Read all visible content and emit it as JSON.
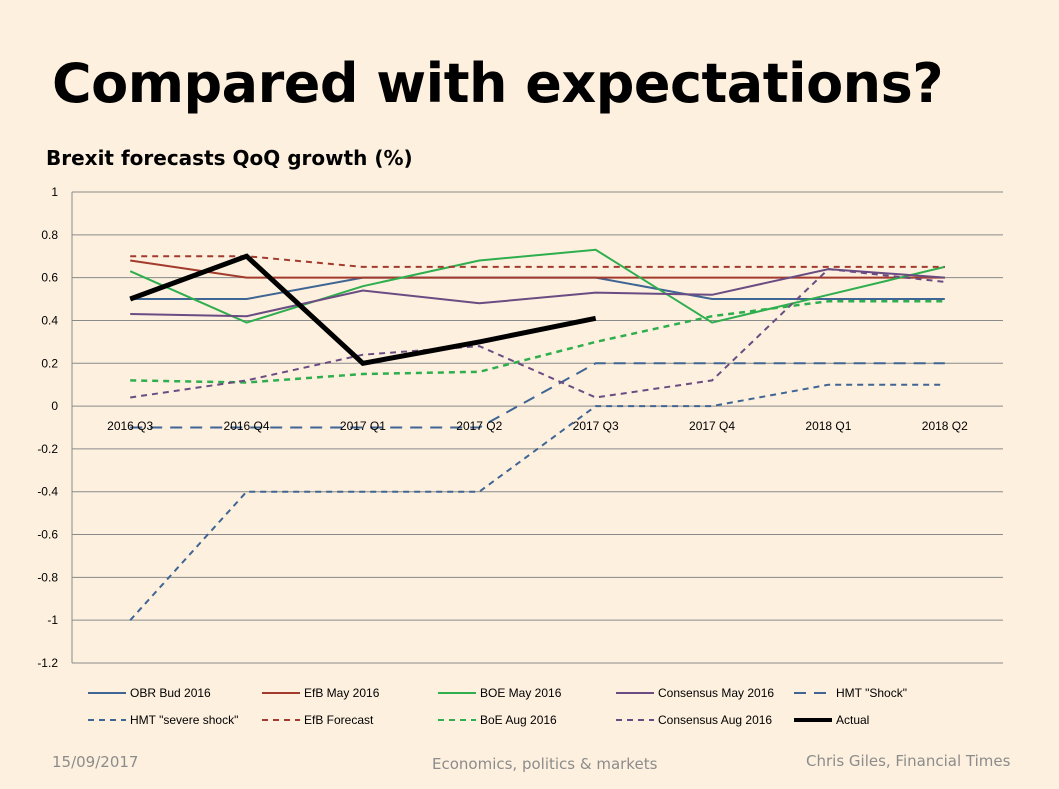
{
  "slide": {
    "title": "Compared with expectations?",
    "footer_date": "15/09/2017",
    "footer_center": "Economics, politics & markets",
    "footer_right": "Chris Giles, Financial Times"
  },
  "chart_data": {
    "type": "line",
    "title": "Brexit forecasts QoQ growth (%)",
    "xlabel": "",
    "ylabel": "",
    "categories": [
      "2016 Q3",
      "2016 Q4",
      "2017 Q1",
      "2017 Q2",
      "2017 Q3",
      "2017 Q4",
      "2018 Q1",
      "2018 Q2"
    ],
    "ylim": [
      -1.2,
      1
    ],
    "yticks": [
      1,
      0.8,
      0.6,
      0.4,
      0.2,
      0,
      -0.2,
      -0.4,
      -0.6,
      -0.8,
      -1,
      -1.2
    ],
    "ytick_labels": [
      "1",
      "0.8",
      "0.6",
      "0.4",
      "0.2",
      "0",
      "-0.2",
      "-0.4",
      "-0.6",
      "-0.8",
      "-1",
      "-1.2"
    ],
    "grid": true,
    "legend_position": "bottom",
    "series": [
      {
        "name": "OBR Bud 2016",
        "values": [
          0.5,
          0.5,
          0.6,
          0.6,
          0.6,
          0.5,
          0.5,
          0.5
        ],
        "color": "#3f6594",
        "dash": "solid",
        "width": 2
      },
      {
        "name": "EfB May 2016",
        "values": [
          0.68,
          0.6,
          0.6,
          0.6,
          0.6,
          0.6,
          0.6,
          0.6
        ],
        "color": "#a23b2e",
        "dash": "solid",
        "width": 2
      },
      {
        "name": "BOE May 2016",
        "values": [
          0.63,
          0.39,
          0.56,
          0.68,
          0.73,
          0.39,
          0.52,
          0.65
        ],
        "color": "#2fae4e",
        "dash": "solid",
        "width": 2
      },
      {
        "name": "Consensus May 2016",
        "values": [
          0.43,
          0.42,
          0.54,
          0.48,
          0.53,
          0.52,
          0.64,
          0.6
        ],
        "color": "#6a4c82",
        "dash": "solid",
        "width": 2
      },
      {
        "name": "HMT \"Shock\"",
        "values": [
          -0.1,
          -0.1,
          -0.1,
          -0.1,
          0.2,
          0.2,
          0.2,
          0.2
        ],
        "color": "#3f6594",
        "dash": "long",
        "width": 2
      },
      {
        "name": "HMT \"severe shock\"",
        "values": [
          -1,
          -0.4,
          -0.4,
          -0.4,
          0,
          0,
          0.1,
          0.1
        ],
        "color": "#3f6594",
        "dash": "short",
        "width": 2
      },
      {
        "name": "EfB Forecast",
        "values": [
          0.7,
          0.7,
          0.65,
          0.65,
          0.65,
          0.65,
          0.65,
          0.65
        ],
        "color": "#a23b2e",
        "dash": "short",
        "width": 2
      },
      {
        "name": "BoE Aug 2016",
        "values": [
          0.12,
          0.11,
          0.15,
          0.16,
          0.3,
          0.42,
          0.49,
          0.49
        ],
        "color": "#2fae4e",
        "dash": "short",
        "width": 2.5
      },
      {
        "name": "Consensus Aug 2016",
        "values": [
          0.04,
          0.12,
          0.24,
          0.28,
          0.04,
          0.12,
          0.64,
          0.58
        ],
        "color": "#6a4c82",
        "dash": "short",
        "width": 2
      },
      {
        "name": "Actual",
        "values": [
          0.5,
          0.7,
          0.2,
          0.3,
          0.41,
          null,
          null,
          null
        ],
        "color": "#000000",
        "dash": "solid",
        "width": 5
      }
    ]
  }
}
